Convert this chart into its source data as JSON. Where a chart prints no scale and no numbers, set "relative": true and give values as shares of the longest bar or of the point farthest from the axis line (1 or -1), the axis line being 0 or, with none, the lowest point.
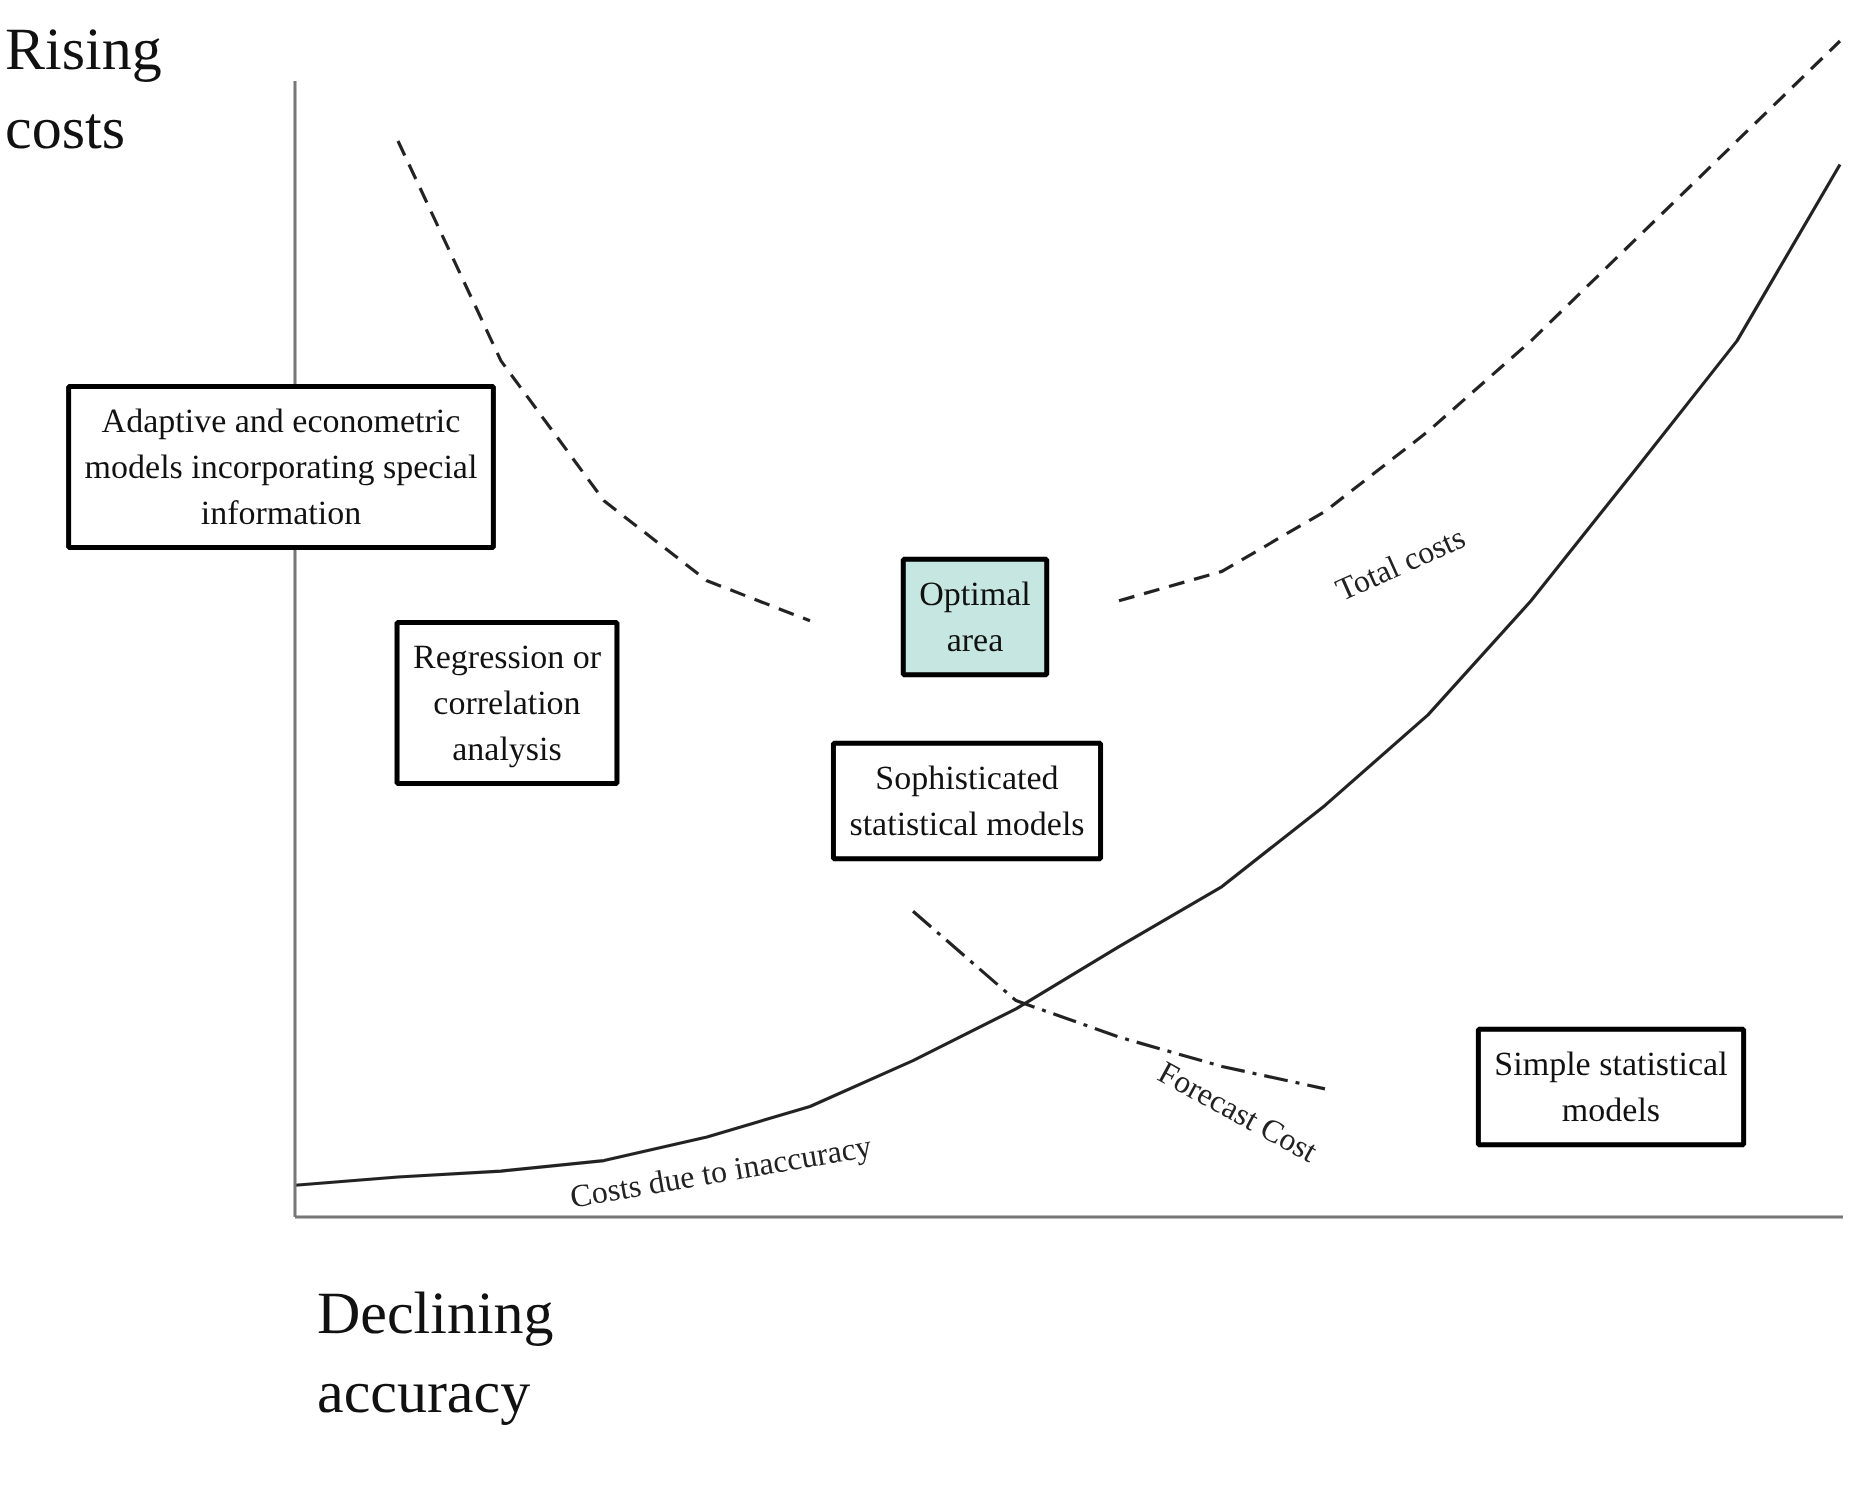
{
  "chart_data": {
    "type": "line",
    "relative": true,
    "xlabel": "Declining\naccuracy",
    "ylabel": "Rising\ncosts",
    "categories": [
      null,
      null,
      null,
      null,
      null,
      null,
      null,
      null,
      null,
      null,
      null,
      null,
      null,
      null,
      null,
      null
    ],
    "series": [
      {
        "name": "Total costs",
        "color": "#222222",
        "line_style": "dashed",
        "values": [
          null,
          0.915,
          0.728,
          0.609,
          0.541,
          0.507,
          null,
          null,
          0.524,
          0.549,
          0.6,
          0.668,
          0.745,
          0.83,
          0.915,
          1
        ]
      },
      {
        "name": "Forecast Cost",
        "color": "#222222",
        "line_style": "dashdot",
        "values": [
          null,
          null,
          null,
          null,
          null,
          null,
          0.26,
          0.184,
          0.153,
          0.128,
          0.109,
          null,
          null,
          null,
          null,
          null
        ]
      },
      {
        "name": "Costs due to inaccuracy",
        "color": "#222222",
        "line_style": "solid",
        "values": [
          0.027,
          0.034,
          0.039,
          0.048,
          0.068,
          0.094,
          0.133,
          0.177,
          0.23,
          0.281,
          0.35,
          0.427,
          0.524,
          0.634,
          0.745,
          0.895
        ]
      }
    ],
    "annotations": [
      "Adaptive and econometric\nmodels incorporating special\ninformation",
      "Regression or\ncorrelation\nanalysis",
      "Optimal\narea",
      "Sophisticated\nstatistical models",
      "Simple statistical\nmodels"
    ],
    "grid": false
  }
}
